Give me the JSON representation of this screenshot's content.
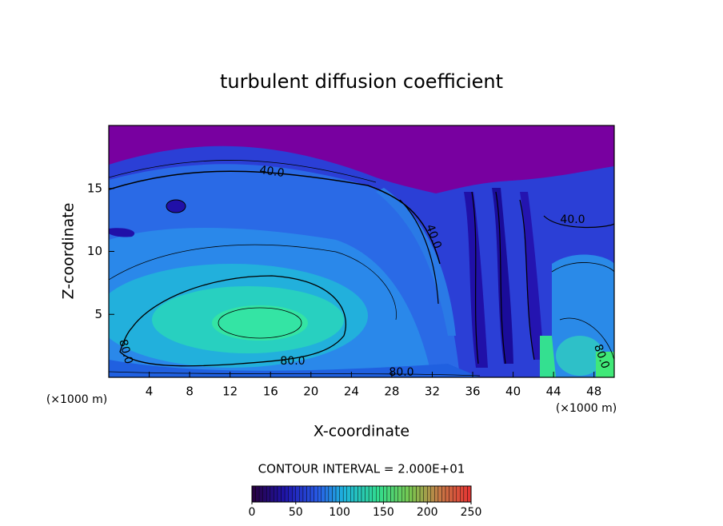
{
  "chart_data": {
    "type": "contour",
    "title": "turbulent diffusion coefficient",
    "x_label": "X-coordinate",
    "y_label": "Z-coordinate",
    "x_unit": "(×1000 m)",
    "y_unit": "(×1000 m)",
    "xlim": [
      0,
      50
    ],
    "ylim": [
      0,
      20
    ],
    "xticks": [
      4,
      8,
      12,
      16,
      20,
      24,
      28,
      32,
      36,
      40,
      44,
      48
    ],
    "yticks": [
      5,
      10,
      15
    ],
    "contour_interval": "CONTOUR INTERVAL = 2.000E+01",
    "contour_labels": [
      "40.0",
      "40.0",
      "40.0",
      "80.0",
      "80.0",
      "80.0",
      "80.0"
    ],
    "colorbar": {
      "lim": [
        0,
        250
      ],
      "ticks": [
        0,
        50,
        100,
        150,
        200,
        250
      ]
    }
  }
}
